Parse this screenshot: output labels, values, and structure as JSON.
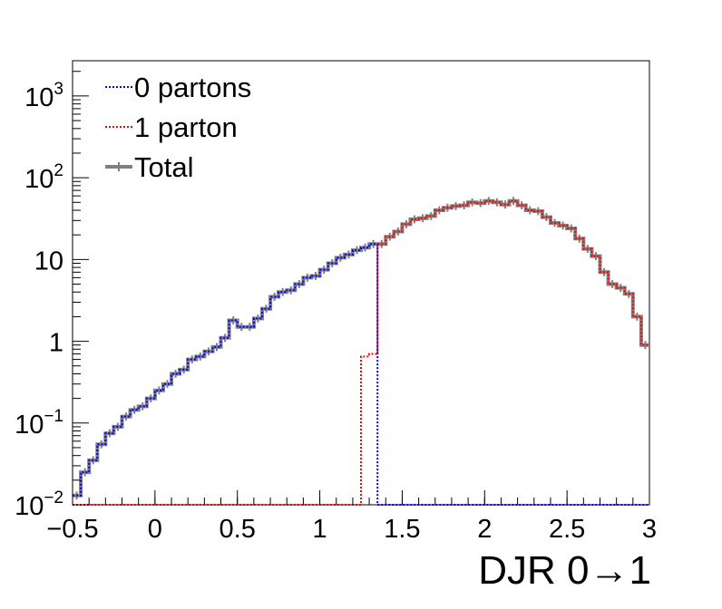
{
  "chart_data": {
    "type": "histogram",
    "title": "",
    "xlabel": "DJR 0→1",
    "ylabel": "",
    "xlim": [
      -0.5,
      3.0
    ],
    "ylim": [
      0.01,
      2700
    ],
    "yscale": "log",
    "grid": false,
    "legend_position": "top-left",
    "bin_width": 0.05,
    "bin_start": -0.5,
    "x_ticks": [
      {
        "value": -0.5,
        "label": "−0.5"
      },
      {
        "value": 0,
        "label": "0"
      },
      {
        "value": 0.5,
        "label": "0.5"
      },
      {
        "value": 1,
        "label": "1"
      },
      {
        "value": 1.5,
        "label": "1.5"
      },
      {
        "value": 2,
        "label": "2"
      },
      {
        "value": 2.5,
        "label": "2.5"
      },
      {
        "value": 3,
        "label": "3"
      }
    ],
    "y_ticks": [
      {
        "value": 0.01,
        "base": "10",
        "exp": "−2"
      },
      {
        "value": 0.1,
        "base": "10",
        "exp": "−1"
      },
      {
        "value": 1,
        "base": "1",
        "exp": ""
      },
      {
        "value": 10,
        "base": "10",
        "exp": ""
      },
      {
        "value": 100,
        "base": "10",
        "exp": "2"
      },
      {
        "value": 1000,
        "base": "10",
        "exp": "3"
      }
    ],
    "series": [
      {
        "name": "0 partons",
        "color": "#0000ff",
        "style": "dotted",
        "values": [
          0.013,
          0.025,
          0.035,
          0.055,
          0.075,
          0.09,
          0.12,
          0.145,
          0.16,
          0.2,
          0.25,
          0.3,
          0.4,
          0.45,
          0.6,
          0.65,
          0.75,
          0.85,
          1.1,
          1.8,
          1.5,
          1.5,
          1.9,
          2.5,
          3.5,
          4.0,
          4.2,
          5.0,
          6.0,
          6.3,
          7.5,
          9.0,
          10.5,
          11.5,
          13.0,
          14.0,
          15.5,
          0.01,
          0.01,
          0.01,
          0.01,
          0.01,
          0.01,
          0.01,
          0.01,
          0.01,
          0.01,
          0.01,
          0.01,
          0.01,
          0.01,
          0.01,
          0.01,
          0.01,
          0.01,
          0.01,
          0.01,
          0.01,
          0.01,
          0.01,
          0.01,
          0.01,
          0.01,
          0.01,
          0.01,
          0.01,
          0.01,
          0.01,
          0.01,
          0.01
        ]
      },
      {
        "name": "1 parton",
        "color": "#ff0000",
        "style": "dotted",
        "values": [
          0.01,
          0.01,
          0.01,
          0.01,
          0.01,
          0.01,
          0.01,
          0.01,
          0.01,
          0.01,
          0.01,
          0.01,
          0.01,
          0.01,
          0.01,
          0.01,
          0.01,
          0.01,
          0.01,
          0.01,
          0.01,
          0.01,
          0.01,
          0.01,
          0.01,
          0.01,
          0.01,
          0.01,
          0.01,
          0.01,
          0.01,
          0.01,
          0.01,
          0.01,
          0.01,
          0.65,
          0.7,
          15.5,
          19.0,
          22.0,
          27.0,
          31.0,
          32.0,
          34.0,
          40.0,
          43.0,
          45.0,
          46.0,
          50.0,
          49.0,
          52.0,
          50.0,
          47.0,
          52.0,
          46.0,
          40.0,
          39.0,
          33.0,
          28.0,
          26.0,
          24.0,
          18.0,
          13.5,
          11.0,
          7.0,
          5.0,
          4.5,
          3.8,
          2.0,
          0.9
        ]
      },
      {
        "name": "Total",
        "color": "#808080",
        "style": "solid",
        "values": [
          0.013,
          0.025,
          0.035,
          0.055,
          0.075,
          0.09,
          0.12,
          0.145,
          0.16,
          0.2,
          0.25,
          0.3,
          0.4,
          0.45,
          0.6,
          0.65,
          0.75,
          0.85,
          1.1,
          1.8,
          1.5,
          1.5,
          1.9,
          2.5,
          3.5,
          4.0,
          4.2,
          5.0,
          6.0,
          6.3,
          7.5,
          9.0,
          10.5,
          11.5,
          13.0,
          14.0,
          15.5,
          15.5,
          19.0,
          22.0,
          27.0,
          31.0,
          32.0,
          34.0,
          40.0,
          43.0,
          45.0,
          46.0,
          50.0,
          49.0,
          52.0,
          50.0,
          47.0,
          52.0,
          46.0,
          40.0,
          39.0,
          33.0,
          28.0,
          26.0,
          24.0,
          18.0,
          13.5,
          11.0,
          7.0,
          5.0,
          4.5,
          3.8,
          2.0,
          0.9
        ]
      }
    ]
  }
}
